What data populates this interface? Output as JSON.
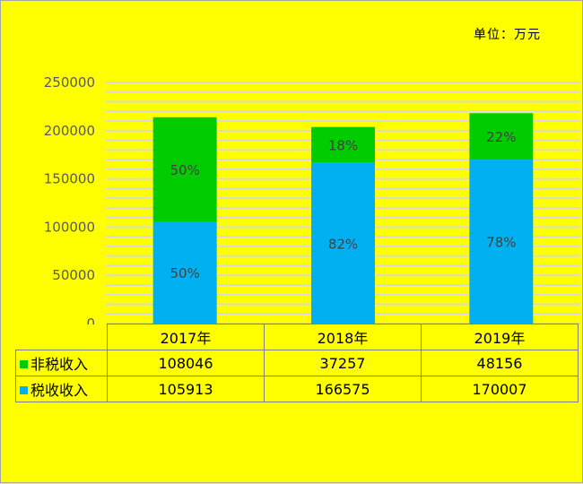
{
  "unit_label": "单位：万元",
  "colors": {
    "tax": "#00B0F0",
    "nontax": "#00CC00",
    "background": "#FFFF00",
    "grid": "#D9D9D9"
  },
  "chart_data": {
    "type": "bar",
    "stacked": true,
    "categories": [
      "2017年",
      "2018年",
      "2019年"
    ],
    "ylim": [
      0,
      250000
    ],
    "yticks": [
      "0",
      "50000",
      "100000",
      "150000",
      "200000",
      "250000"
    ],
    "legend": "bottom data table",
    "series": [
      {
        "name": "税收收入",
        "color": "#00B0F0",
        "values": [
          105913,
          166575,
          170007
        ],
        "labels": [
          "50%",
          "82%",
          "78%"
        ]
      },
      {
        "name": "非税收入",
        "color": "#00CC00",
        "values": [
          108046,
          37257,
          48156
        ],
        "labels": [
          "50%",
          "18%",
          "22%"
        ]
      }
    ]
  },
  "table": {
    "rows": [
      {
        "name": "非税收入",
        "values": [
          "108046",
          "37257",
          "48156"
        ]
      },
      {
        "name": "税收收入",
        "values": [
          "105913",
          "166575",
          "170007"
        ]
      }
    ]
  }
}
